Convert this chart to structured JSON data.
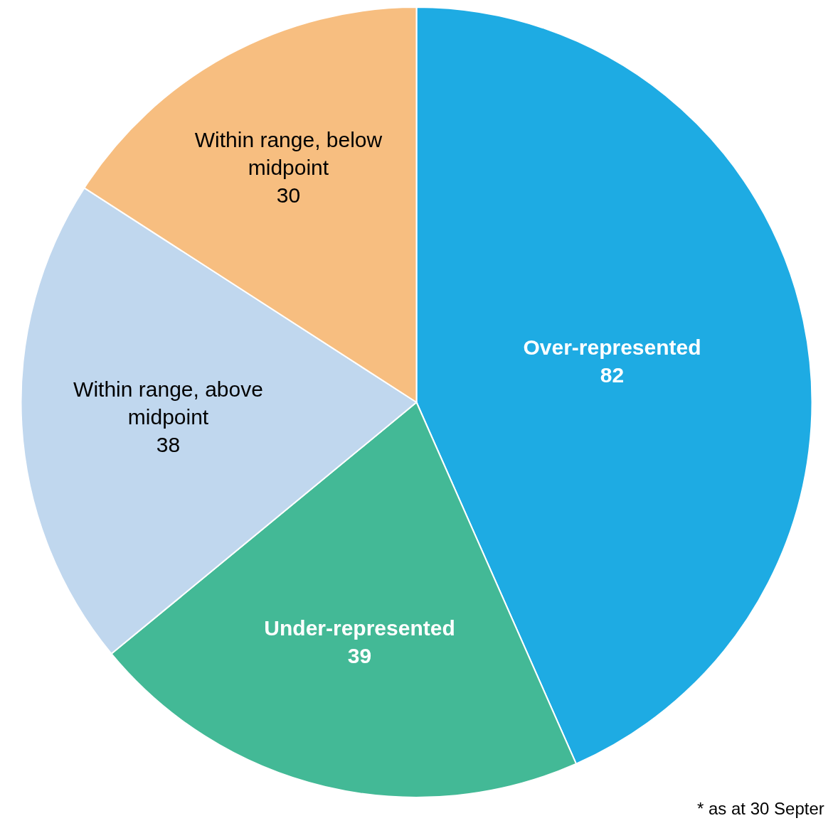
{
  "chart_data": {
    "type": "pie",
    "categories": [
      "Over-represented",
      "Under-represented",
      "Within range, above midpoint",
      "Within range, below midpoint"
    ],
    "values": [
      82,
      39,
      38,
      30
    ],
    "colors": [
      "#1eabe3",
      "#43b996",
      "#c0d7ee",
      "#f7be80"
    ],
    "data_labels": true,
    "legend": false,
    "annotations": [
      "* as at 30 Septer"
    ]
  }
}
